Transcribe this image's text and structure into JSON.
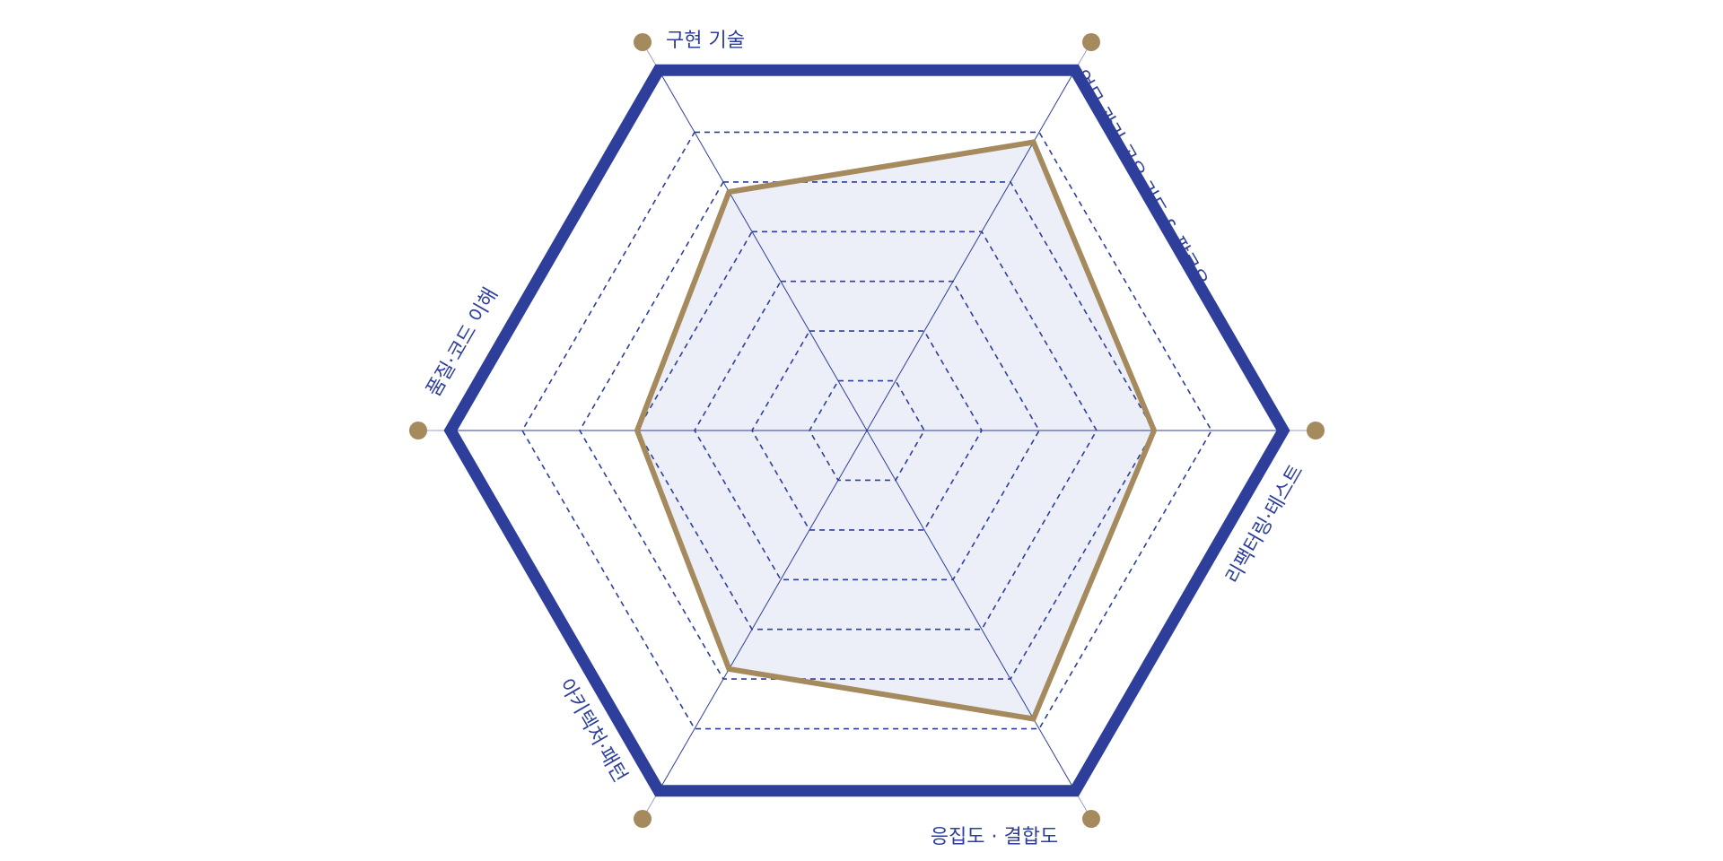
{
  "chart_data": {
    "type": "radar",
    "axes": [
      "구현 기술",
      "업무 관리·공유·리드 & 팔로우",
      "리팩터링·테스트",
      "응집도 · 결합도",
      "아키텍처·패턴",
      "품질·코드 이해"
    ],
    "scale": [
      0,
      6
    ],
    "grid_levels": 6,
    "series": [
      {
        "values": [
          4.8,
          5.8,
          5.0,
          5.8,
          4.8,
          4.0
        ]
      }
    ],
    "colors": {
      "outer_ring": "#2e3f9b",
      "grid_line": "#2e3f9b",
      "series_line": "#a48a5d",
      "series_fill": "#eceef8",
      "axis_dot": "#a48a5d",
      "label_text": "#2e3f9b"
    }
  }
}
